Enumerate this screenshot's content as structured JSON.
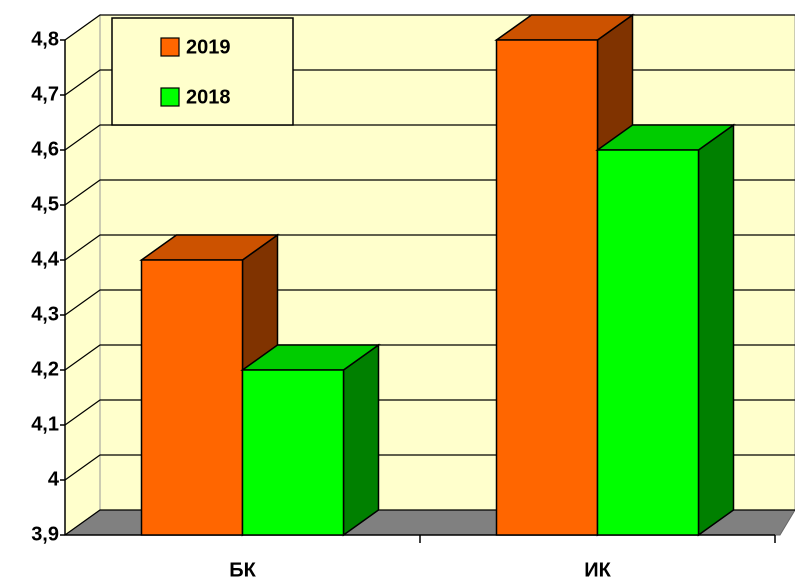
{
  "chart_data": {
    "type": "bar3d",
    "categories": [
      "БК",
      "ИК"
    ],
    "series": [
      {
        "name": "2019",
        "color": "#ff6600",
        "values": [
          4.4,
          4.8
        ]
      },
      {
        "name": "2018",
        "color": "#00ff00",
        "values": [
          4.2,
          4.6
        ]
      }
    ],
    "ylim": [
      3.9,
      4.8
    ],
    "yticks": [
      {
        "value": 3.9,
        "label": "3,9"
      },
      4,
      {
        "value": 4.1,
        "label": "4,1"
      },
      {
        "value": 4.2,
        "label": "4,2"
      },
      {
        "value": 4.3,
        "label": "4,3"
      },
      {
        "value": 4.4,
        "label": "4,4"
      },
      {
        "value": 4.5,
        "label": "4,5"
      },
      {
        "value": 4.6,
        "label": "4,6"
      },
      {
        "value": 4.7,
        "label": "4,7"
      },
      {
        "value": 4.8,
        "label": "4,8"
      }
    ],
    "grid": true,
    "legend": "upper left"
  }
}
